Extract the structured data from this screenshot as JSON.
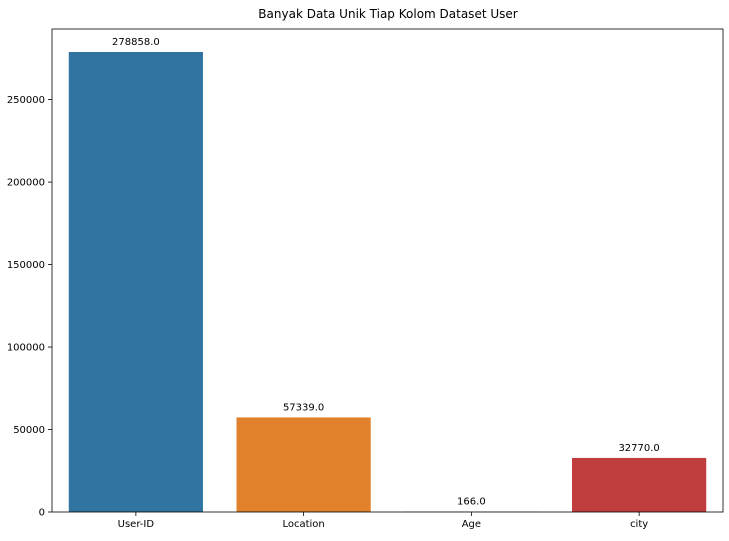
{
  "chart_data": {
    "type": "bar",
    "title": "Banyak Data Unik Tiap Kolom Dataset User",
    "xlabel": "",
    "ylabel": "",
    "categories": [
      "User-ID",
      "Location",
      "Age",
      "city"
    ],
    "values": [
      278858,
      57339,
      166,
      32770
    ],
    "data_labels": [
      "278858.0",
      "57339.0",
      "166.0",
      "32770.0"
    ],
    "colors": [
      "#3274a1",
      "#e1812c",
      "#3a923a",
      "#c03d3e"
    ],
    "ylim": [
      0,
      292800
    ],
    "yticks": [
      0,
      50000,
      100000,
      150000,
      200000,
      250000
    ],
    "ytick_labels": [
      "0",
      "50000",
      "100000",
      "150000",
      "200000",
      "250000"
    ],
    "grid": false,
    "legend": "none"
  }
}
